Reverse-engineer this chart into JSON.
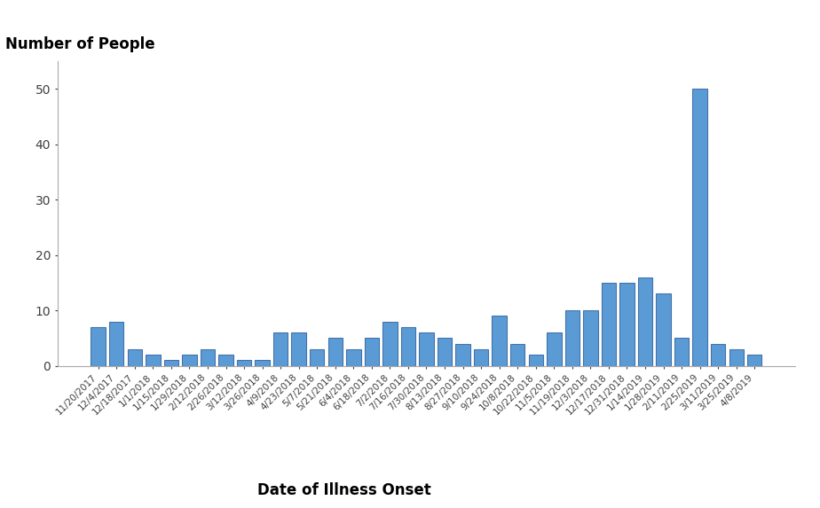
{
  "x_labels": [
    "11/20/2017",
    "12/4/2017",
    "12/18/2017",
    "1/1/2018",
    "1/15/2018",
    "1/29/2018",
    "2/12/2018",
    "2/26/2018",
    "3/12/2018",
    "3/26/2018",
    "4/9/2018",
    "4/23/2018",
    "5/7/2018",
    "5/21/2018",
    "6/4/2018",
    "6/18/2018",
    "7/2/2018",
    "7/16/2018",
    "7/30/2018",
    "8/13/2018",
    "8/27/2018",
    "9/10/2018",
    "9/24/2018",
    "10/8/2018",
    "10/22/2018",
    "11/5/2018",
    "11/19/2018",
    "12/3/2018",
    "12/17/2018",
    "12/31/2018",
    "1/14/2019",
    "1/28/2019",
    "2/11/2019",
    "2/25/2019",
    "3/11/2019",
    "3/25/2019",
    "4/8/2019"
  ],
  "values": [
    7,
    8,
    3,
    2,
    1,
    2,
    3,
    2,
    1,
    1,
    6,
    6,
    3,
    5,
    3,
    5,
    8,
    7,
    6,
    5,
    4,
    3,
    9,
    4,
    2,
    6,
    10,
    10,
    15,
    15,
    16,
    13,
    5,
    50,
    4,
    3,
    2
  ],
  "bar_color": "#5B9BD5",
  "bar_edge_color": "#4472A8",
  "ylabel_text": "Number of People",
  "xlabel_text": "Date of Illness Onset",
  "ylim": [
    0,
    55
  ],
  "yticks": [
    0,
    10,
    20,
    30,
    40,
    50
  ],
  "background_color": "#ffffff",
  "title_fontsize": 12,
  "xlabel_fontsize": 12,
  "tick_label_fontsize": 7.5,
  "ytick_fontsize": 10
}
